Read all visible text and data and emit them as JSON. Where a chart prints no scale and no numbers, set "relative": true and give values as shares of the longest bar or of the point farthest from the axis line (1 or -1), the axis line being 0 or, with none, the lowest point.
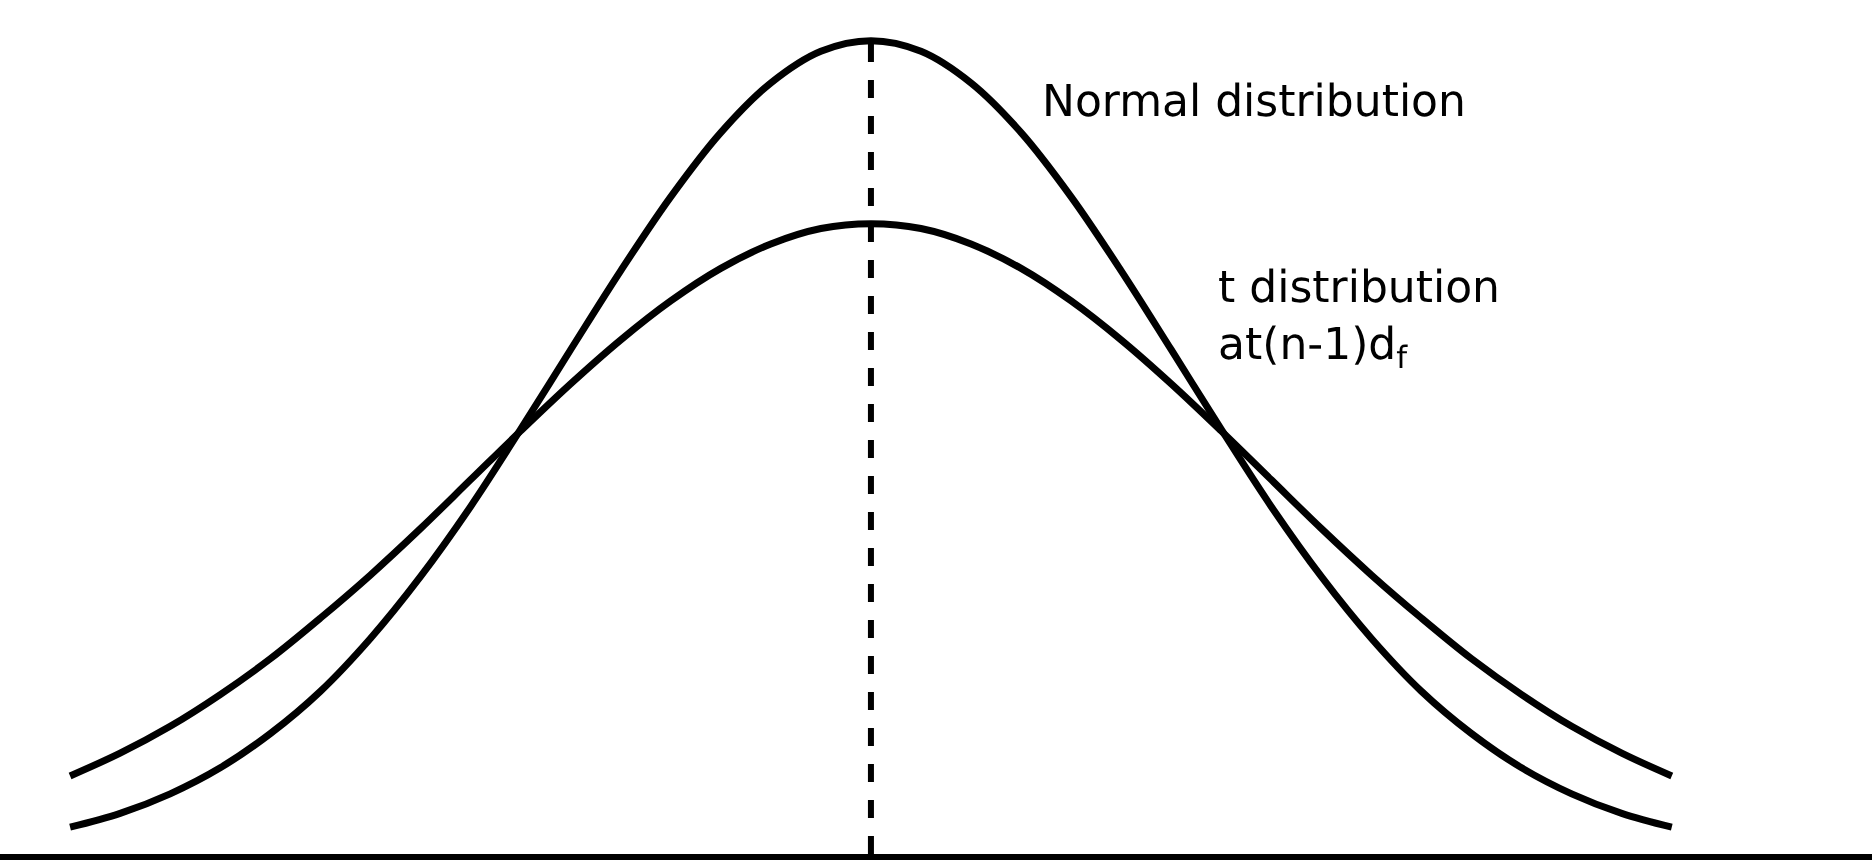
{
  "chart_data": {
    "type": "line",
    "relative": true,
    "categories": [
      null,
      null,
      null,
      null,
      null,
      null,
      null,
      null,
      null,
      null,
      null,
      null,
      null,
      null,
      null,
      null,
      null,
      null,
      null,
      null,
      null,
      null,
      null,
      null,
      null,
      null,
      null,
      null,
      null,
      null,
      null,
      null,
      null
    ],
    "series": [
      {
        "name": "Normal distribution",
        "color": "#000000",
        "values": [
          0.033,
          0.05,
          0.074,
          0.106,
          0.148,
          0.2,
          0.265,
          0.341,
          0.427,
          0.522,
          0.62,
          0.717,
          0.808,
          0.887,
          0.948,
          0.987,
          1,
          0.987,
          0.948,
          0.887,
          0.808,
          0.717,
          0.62,
          0.522,
          0.427,
          0.341,
          0.265,
          0.2,
          0.148,
          0.106,
          0.074,
          0.05,
          0.033
        ]
      },
      {
        "name": "t distribution\nat(n-1)d$_{f}$",
        "color": "#000000",
        "values": [
          0.096,
          0.124,
          0.157,
          0.196,
          0.24,
          0.29,
          0.343,
          0.4,
          0.46,
          0.52,
          0.578,
          0.632,
          0.68,
          0.72,
          0.75,
          0.769,
          0.775,
          0.769,
          0.75,
          0.72,
          0.68,
          0.632,
          0.578,
          0.52,
          0.46,
          0.4,
          0.343,
          0.29,
          0.24,
          0.196,
          0.157,
          0.124,
          0.096
        ]
      }
    ],
    "legend": false,
    "marker": "none",
    "line_style": "solid"
  }
}
